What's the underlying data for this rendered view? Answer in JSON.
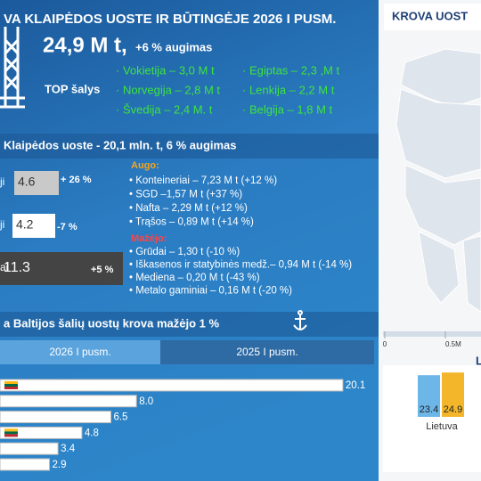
{
  "header": {
    "title": "VA KLAIPĖDOS UOSTE IR BŪTINGĖJE 2026 I PUSM.",
    "total": "24,9 M t,",
    "growth": "+6 % augimas",
    "top_label": "TOP šalys",
    "top_countries": [
      "· Vokietija – 3,0 M t",
      "· Norvegija – 2,8 M t",
      "· Švedija – 2,4 M. t",
      "· Egiptas – 2,3 ,M t",
      "· Lenkija – 2,2 M t",
      "· Belgija – 1,8 M t"
    ]
  },
  "klaipeda": {
    "title": "Klaipėdos uoste - 20,1 mln. t, 6 % augimas",
    "rows": [
      {
        "label": "ji",
        "value": "4.6",
        "change": "+ 26 %"
      },
      {
        "label": "ji",
        "value": "4.2",
        "change": "-7 %"
      },
      {
        "label": "ai",
        "value": "11.3",
        "change": "+5 %"
      }
    ],
    "grew_label": "Augo:",
    "grew": [
      "• Konteineriai – 7,23 M t (+12 %)",
      "• SGD –1,57 M t (+37 %)",
      "• Nafta – 2,29 M t (+12 %)",
      "• Trąšos – 0,89 M t (+14 %)"
    ],
    "fell_label": "Mažėjo:",
    "fell": [
      "• Grūdai – 1,30 t (-10 %)",
      "• Iškasenos ir statybinės medž.– 0,94 M t (-14 %)",
      "• Mediena – 0,20 M t (-43 %)",
      "• Metalo gaminiai – 0,16 M t (-20 %)"
    ]
  },
  "baltic": {
    "title": "a Baltijos šalių uostų krova mažėjo 1 %",
    "tabs": [
      "2026 I pusm.",
      "2025 I pusm."
    ],
    "values": [
      20.1,
      8,
      6.5,
      4.8,
      3.4,
      2.9
    ],
    "value_labels": [
      "20.1",
      "8.0",
      "6.5",
      "4.8",
      "3.4",
      "2.9"
    ]
  },
  "map": {
    "title": "KROVA UOST",
    "scale_ticks": [
      0,
      {
        "value": 0.5,
        "label": "0.5M"
      }
    ],
    "legend_partial": "L"
  },
  "mini_chart": {
    "category": "Lietuva",
    "values": [
      23.4,
      24.9
    ],
    "colors": [
      "#6cb6e8",
      "#f3b62b"
    ]
  }
}
